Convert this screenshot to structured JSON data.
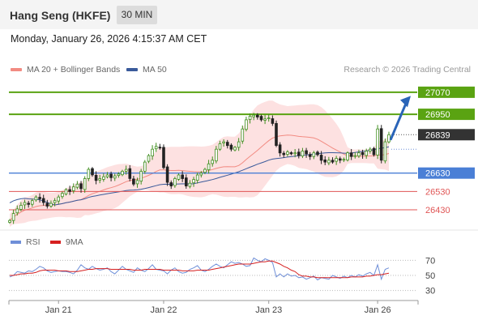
{
  "header": {
    "title": "Hang Seng (HKFE)",
    "timeframe": "30 MIN"
  },
  "datetime": "Monday, January 26, 2026 4:15:37 AM CET",
  "legend": {
    "ma20": {
      "label": "MA 20 + Bollinger Bands",
      "color": "#f28b82"
    },
    "ma50": {
      "label": "MA 50",
      "color": "#3a5a9b"
    }
  },
  "credit": "Research © 2026 Trading Central",
  "rsi_legend": {
    "rsi": {
      "label": "RSI",
      "color": "#6f8fd8"
    },
    "ma9": {
      "label": "9MA",
      "color": "#d62020"
    }
  },
  "chart_data": {
    "type": "candlestick",
    "price_range": [
      26320,
      27140
    ],
    "current_price": 26839,
    "levels": [
      {
        "value": 27070,
        "label": "27070",
        "kind": "resistance",
        "color": "#5aa312"
      },
      {
        "value": 26950,
        "label": "26950",
        "kind": "resistance",
        "color": "#5aa312"
      },
      {
        "value": 26839,
        "label": "26839",
        "kind": "last",
        "color": "#333333"
      },
      {
        "value": 26630,
        "label": "26630",
        "kind": "pivot",
        "color": "#4a7fd6"
      },
      {
        "value": 26530,
        "label": "26530",
        "kind": "support",
        "color": "#e05555"
      },
      {
        "value": 26430,
        "label": "26430",
        "kind": "support",
        "color": "#e05555"
      }
    ],
    "x_ticks": [
      "Jan 21",
      "Jan 22",
      "Jan 23",
      "Jan 26"
    ],
    "x_tick_index": [
      13,
      41,
      69,
      98
    ],
    "candle_count": 102,
    "closes": [
      26372,
      26410,
      26435,
      26455,
      26470,
      26460,
      26480,
      26500,
      26490,
      26470,
      26450,
      26465,
      26480,
      26500,
      26520,
      26540,
      26530,
      26555,
      26570,
      26545,
      26600,
      26650,
      26620,
      26590,
      26600,
      26610,
      26620,
      26605,
      26615,
      26625,
      26640,
      26650,
      26600,
      26570,
      26590,
      26640,
      26690,
      26725,
      26760,
      26775,
      26770,
      26660,
      26580,
      26560,
      26600,
      26620,
      26600,
      26560,
      26575,
      26595,
      26620,
      26630,
      26650,
      26680,
      26700,
      26760,
      26790,
      26800,
      26780,
      26760,
      26770,
      26800,
      26870,
      26920,
      26940,
      26945,
      26935,
      26920,
      26925,
      26930,
      26900,
      26780,
      26740,
      26730,
      26745,
      26735,
      26740,
      26725,
      26750,
      26735,
      26720,
      26740,
      26730,
      26700,
      26690,
      26700,
      26690,
      26710,
      26700,
      26705,
      26740,
      26720,
      26725,
      26740,
      26730,
      26750,
      26760,
      26730,
      26870,
      26700,
      26800,
      26839
    ],
    "rsi_range": [
      20,
      80
    ],
    "rsi_ticks": [
      70,
      50,
      30
    ],
    "rsi": [
      48,
      50,
      55,
      54,
      53,
      56,
      55,
      58,
      62,
      60,
      56,
      54,
      55,
      56,
      55,
      55,
      54,
      52,
      57,
      64,
      60,
      58,
      62,
      59,
      57,
      58,
      60,
      55,
      52,
      57,
      62,
      58,
      56,
      54,
      60,
      57,
      55,
      59,
      64,
      58,
      57,
      56,
      52,
      57,
      60,
      55,
      53,
      54,
      58,
      60,
      63,
      57,
      55,
      58,
      62,
      65,
      62,
      60,
      64,
      68,
      66,
      67,
      65,
      62,
      63,
      73,
      70,
      68,
      72,
      70,
      67,
      48,
      52,
      48,
      52,
      49,
      50,
      47,
      48,
      45,
      47,
      49,
      44,
      47,
      46,
      45,
      50,
      48,
      46,
      49,
      47,
      50,
      48,
      51,
      49,
      52,
      54,
      50,
      64,
      45,
      58,
      60
    ],
    "rsi_ma9": [
      50,
      50,
      51,
      52,
      52,
      53,
      53,
      54,
      56,
      57,
      57,
      57,
      57,
      56,
      56,
      56,
      55,
      55,
      55,
      56,
      57,
      58,
      58,
      59,
      59,
      59,
      59,
      58,
      58,
      58,
      58,
      58,
      58,
      57,
      57,
      57,
      58,
      58,
      58,
      58,
      58,
      57,
      57,
      57,
      57,
      57,
      56,
      56,
      56,
      56,
      57,
      57,
      57,
      57,
      58,
      59,
      60,
      61,
      62,
      63,
      64,
      65,
      65,
      65,
      65,
      66,
      67,
      68,
      68,
      69,
      69,
      67,
      65,
      62,
      60,
      57,
      55,
      51,
      49,
      49,
      48,
      48,
      47,
      47,
      47,
      47,
      47,
      47,
      47,
      47,
      47,
      48,
      48,
      48,
      48,
      49,
      49,
      50,
      51,
      51,
      52,
      53
    ]
  }
}
